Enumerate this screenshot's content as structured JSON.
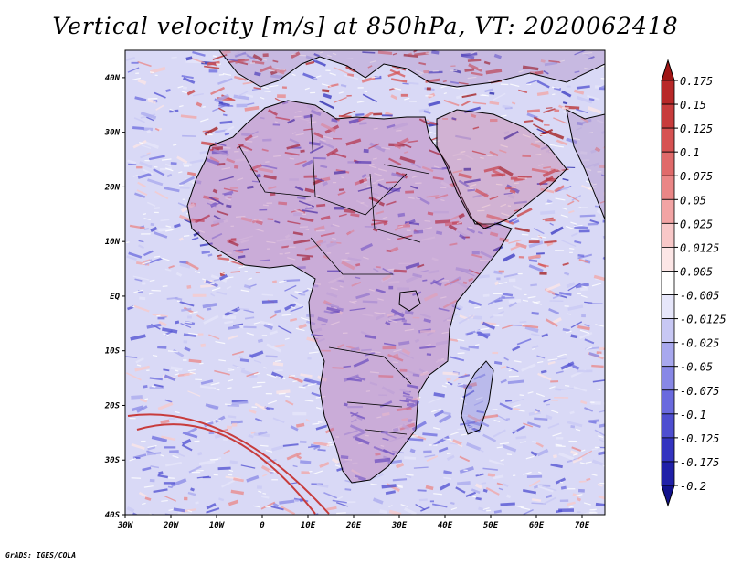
{
  "title": "Vertical velocity [m/s] at 850hPa, VT: 2020062418",
  "credit": "GrADS: IGES/COLA",
  "map": {
    "lon_range": [
      -30,
      75
    ],
    "lat_range": [
      -40,
      45
    ],
    "x_ticks": [
      "30W",
      "20W",
      "10W",
      "0",
      "10E",
      "20E",
      "30E",
      "40E",
      "50E",
      "60E",
      "70E"
    ],
    "y_ticks": [
      "40N",
      "30N",
      "20N",
      "10N",
      "EQ",
      "10S",
      "20S",
      "30S",
      "40S"
    ]
  },
  "colorbar": {
    "labels": [
      "0.175",
      "0.15",
      "0.125",
      "0.1",
      "0.075",
      "0.05",
      "0.025",
      "0.0125",
      "0.005",
      "-0.005",
      "-0.0125",
      "-0.025",
      "-0.05",
      "-0.075",
      "-0.1",
      "-0.125",
      "-0.175",
      "-0.2"
    ],
    "colors": [
      "#a01616",
      "#b82828",
      "#c83c3c",
      "#d65252",
      "#e06a6a",
      "#ea8686",
      "#f2a4a4",
      "#f8c8c8",
      "#fce6e6",
      "#ffffff",
      "#e6e6fa",
      "#c8c8f4",
      "#a8a8ee",
      "#8888e6",
      "#6a6ade",
      "#4e4ed0",
      "#3434c0",
      "#2020a8",
      "#12128c"
    ]
  }
}
